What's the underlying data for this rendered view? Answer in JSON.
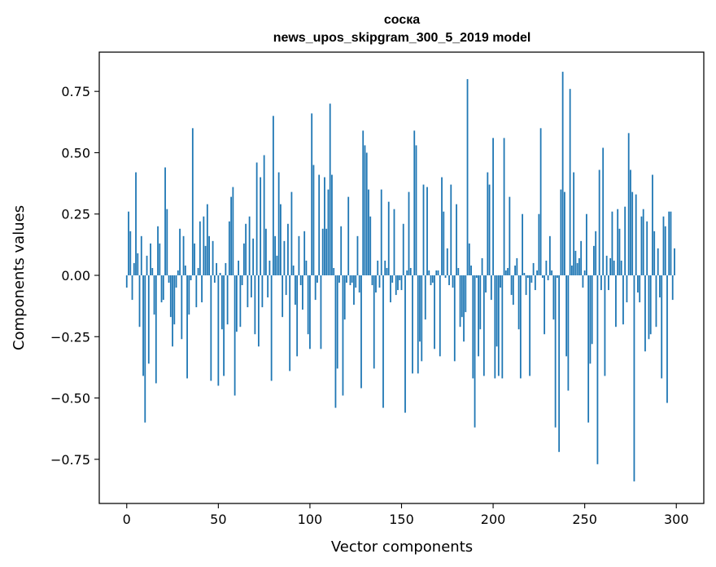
{
  "chart_data": {
    "type": "bar",
    "title": "соска",
    "subtitle": "news_upos_skipgram_300_5_2019 model",
    "xlabel": "Vector components",
    "ylabel": "Components values",
    "xlim": [
      -15,
      315
    ],
    "ylim": [
      -0.93,
      0.91
    ],
    "xticks": [
      0,
      50,
      100,
      150,
      200,
      250,
      300
    ],
    "xtick_labels": [
      "0",
      "50",
      "100",
      "150",
      "200",
      "250",
      "300"
    ],
    "yticks": [
      -0.75,
      -0.5,
      -0.25,
      0.0,
      0.25,
      0.5,
      0.75
    ],
    "ytick_labels": [
      "−0.75",
      "−0.50",
      "−0.25",
      "0.00",
      "0.25",
      "0.50",
      "0.75"
    ],
    "grid": false,
    "bar_color": "#1f77b4",
    "values": [
      -0.05,
      0.26,
      0.18,
      -0.1,
      0.05,
      0.42,
      0.09,
      -0.21,
      0.16,
      -0.41,
      -0.6,
      0.08,
      -0.36,
      0.13,
      0.03,
      -0.16,
      -0.44,
      0.2,
      0.13,
      -0.11,
      -0.1,
      0.44,
      0.27,
      -0.03,
      -0.17,
      -0.29,
      -0.2,
      -0.05,
      0.02,
      0.19,
      -0.26,
      0.16,
      0.04,
      -0.42,
      -0.16,
      -0.02,
      0.6,
      0.13,
      -0.13,
      0.03,
      0.22,
      -0.11,
      0.24,
      0.12,
      0.29,
      0.16,
      -0.43,
      0.14,
      -0.03,
      0.05,
      -0.45,
      0.01,
      -0.22,
      -0.41,
      0.05,
      -0.2,
      0.22,
      0.32,
      0.36,
      -0.49,
      -0.23,
      0.06,
      -0.21,
      -0.04,
      0.13,
      0.21,
      -0.13,
      0.24,
      -0.09,
      0.15,
      -0.24,
      0.46,
      -0.29,
      0.4,
      -0.13,
      0.49,
      0.19,
      -0.09,
      0.06,
      -0.43,
      0.65,
      0.16,
      0.08,
      0.42,
      0.29,
      -0.17,
      0.14,
      -0.08,
      0.21,
      -0.39,
      0.34,
      0.04,
      -0.12,
      -0.33,
      0.16,
      -0.04,
      -0.14,
      0.18,
      0.06,
      -0.24,
      -0.3,
      0.66,
      0.45,
      -0.1,
      -0.03,
      0.41,
      -0.3,
      0.19,
      0.4,
      0.19,
      0.35,
      0.7,
      0.41,
      0.03,
      -0.54,
      -0.38,
      -0.03,
      0.2,
      -0.49,
      -0.18,
      -0.03,
      0.32,
      -0.04,
      -0.03,
      -0.12,
      -0.05,
      0.16,
      -0.07,
      -0.46,
      0.59,
      0.53,
      0.5,
      0.35,
      0.24,
      -0.04,
      -0.38,
      -0.07,
      0.06,
      -0.05,
      0.35,
      -0.54,
      0.06,
      0.03,
      0.3,
      -0.11,
      -0.03,
      0.27,
      -0.08,
      -0.06,
      -0.02,
      -0.06,
      0.21,
      -0.56,
      0.02,
      0.34,
      0.03,
      -0.4,
      0.59,
      0.53,
      -0.4,
      -0.27,
      -0.35,
      0.37,
      -0.18,
      0.36,
      0.02,
      -0.04,
      -0.03,
      -0.3,
      0.02,
      0.02,
      -0.33,
      0.4,
      0.26,
      -0.01,
      0.11,
      -0.04,
      0.37,
      -0.05,
      -0.35,
      0.29,
      0.03,
      -0.21,
      -0.17,
      -0.27,
      -0.15,
      0.8,
      0.13,
      0.04,
      -0.42,
      -0.62,
      -0.01,
      -0.33,
      -0.22,
      0.07,
      -0.41,
      -0.07,
      0.42,
      0.37,
      -0.1,
      0.56,
      -0.42,
      -0.29,
      -0.41,
      -0.05,
      -0.42,
      0.56,
      0.02,
      0.03,
      0.32,
      -0.08,
      -0.12,
      0.04,
      0.07,
      -0.22,
      -0.42,
      0.25,
      0.01,
      -0.08,
      -0.01,
      -0.41,
      -0.03,
      0.05,
      -0.06,
      0.02,
      0.25,
      0.6,
      -0.01,
      -0.24,
      0.06,
      -0.02,
      0.16,
      0.02,
      -0.18,
      -0.62,
      -0.01,
      -0.72,
      0.35,
      0.83,
      0.34,
      -0.33,
      -0.47,
      0.76,
      0.04,
      0.42,
      0.1,
      0.05,
      0.07,
      0.14,
      -0.05,
      0.02,
      0.25,
      -0.6,
      -0.36,
      -0.28,
      0.12,
      0.18,
      -0.77,
      0.43,
      -0.06,
      0.52,
      -0.41,
      0.08,
      -0.06,
      0.07,
      0.26,
      0.06,
      -0.21,
      0.27,
      0.19,
      0.06,
      -0.2,
      0.28,
      -0.11,
      0.58,
      0.43,
      0.34,
      -0.84,
      0.33,
      -0.07,
      -0.11,
      0.24,
      0.27,
      -0.31,
      0.22,
      -0.26,
      -0.24,
      0.41,
      0.18,
      -0.21,
      0.11,
      -0.09,
      -0.42,
      0.24,
      0.2,
      -0.52,
      0.26,
      0.26,
      -0.1,
      0.11
    ]
  }
}
